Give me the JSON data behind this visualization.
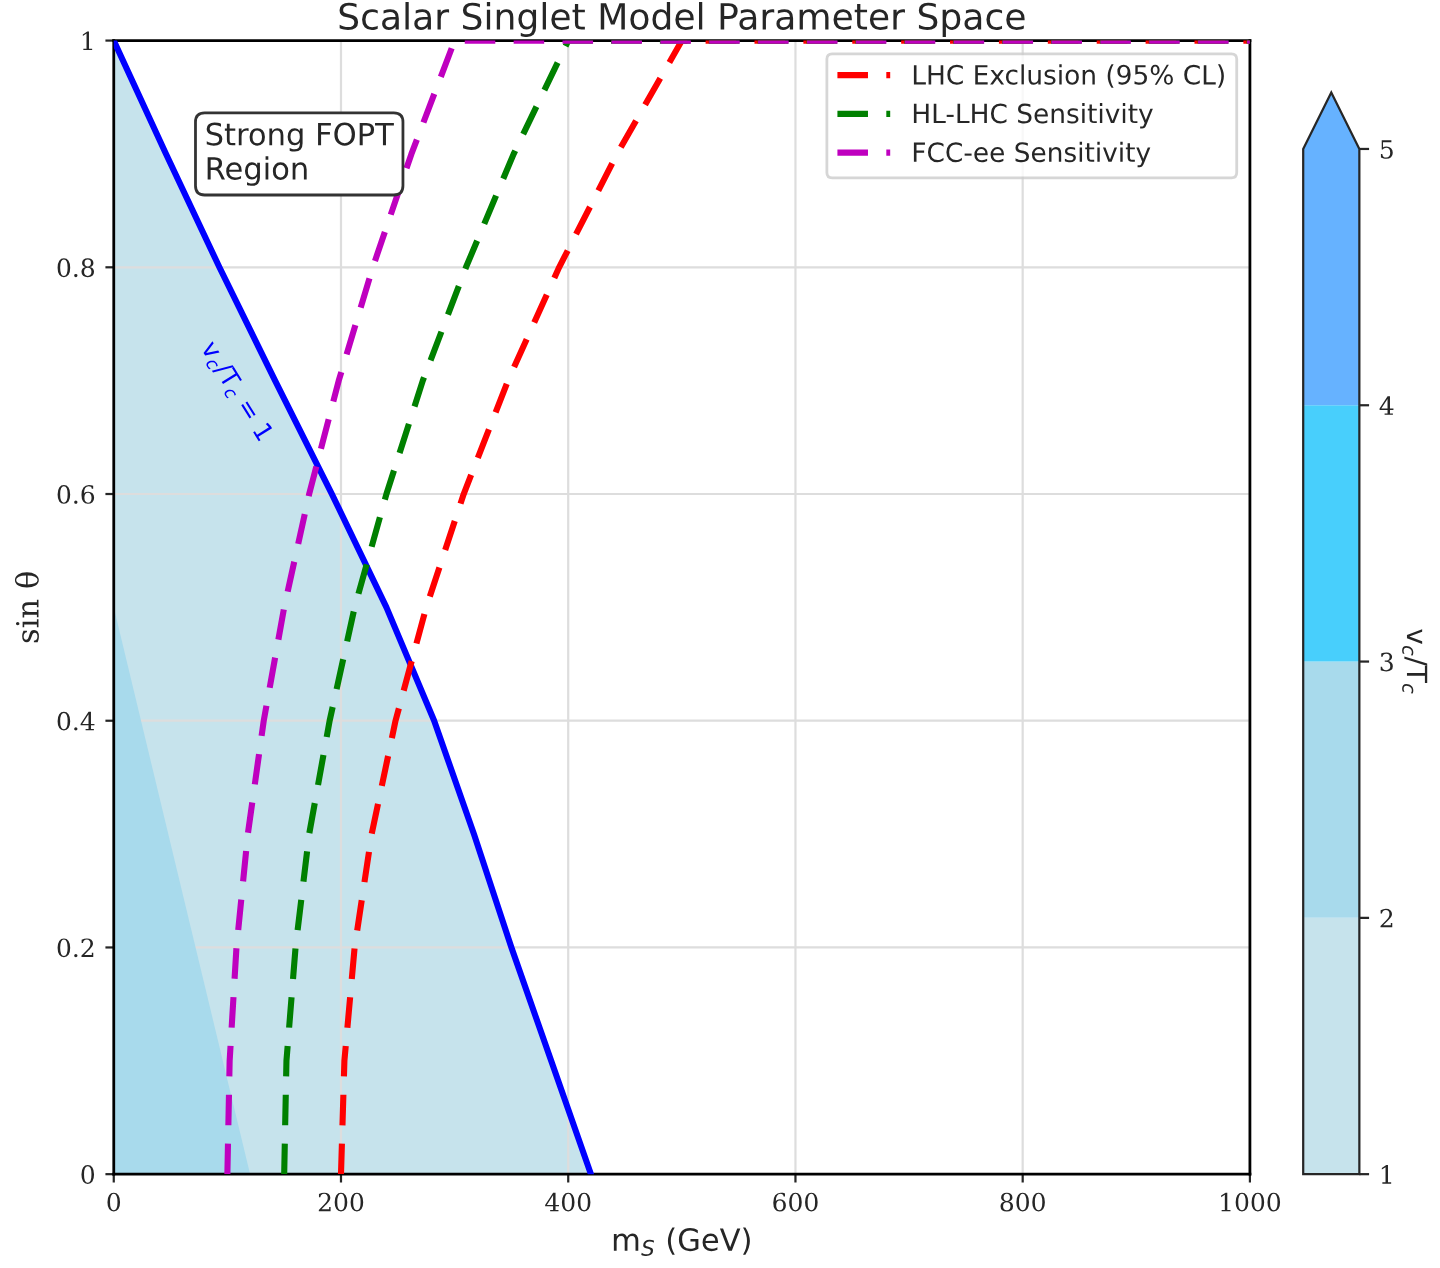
{
  "chart_data": {
    "type": "line",
    "title": "Scalar Singlet Model Parameter Space",
    "xlabel": "m$_{S}$ (GeV)",
    "ylabel": "sin θ",
    "clabel": "v$_{c}$/T$_{c}$",
    "xlim": [
      0,
      1000
    ],
    "ylim": [
      0,
      1
    ],
    "xticks": [
      0,
      200,
      400,
      600,
      800,
      1000
    ],
    "yticks": [
      0,
      0.2,
      0.4,
      0.6,
      0.8,
      1
    ],
    "clim": [
      1,
      5
    ],
    "cticks": [
      1,
      2,
      3,
      4,
      5
    ],
    "colors": [
      "#c6e3ec",
      "#a8daec",
      "#48cffc",
      "#66b2ff"
    ],
    "grid": true,
    "legend": "top right",
    "marker": "none",
    "annotations": [
      "Strong FOPT\nRegion",
      {
        "text": "v$_{c}$/T$_{c}$ = 1",
        "x": 137,
        "y": 0.69
      }
    ],
    "series": [
      {
        "type": "area",
        "color": "#0000ff",
        "x": [
          0,
          46,
          93,
          142,
          192,
          240,
          282,
          317,
          350,
          385,
          420
        ],
        "values": [
          1,
          0.9,
          0.8,
          0.7,
          0.6,
          0.5,
          0.4,
          0.3,
          0.2,
          0.1,
          0
        ]
      },
      {
        "type": "area",
        "color": "#a8daec",
        "x": [
          0,
          120
        ],
        "values": [
          0.5,
          0
        ]
      },
      {
        "type": "line",
        "name": "LHC Exclusion (95% CL)",
        "color": "#ff0000",
        "line_style": "dashed",
        "x": [
          200,
          203,
          212,
          227,
          248,
          275,
          308,
          347,
          392,
          443,
          500,
          1000
        ],
        "values": [
          0,
          0.1,
          0.2,
          0.3,
          0.4,
          0.5,
          0.6,
          0.7,
          0.8,
          0.9,
          1,
          1
        ]
      },
      {
        "type": "line",
        "name": "HL-LHC Sensitivity",
        "color": "#008000",
        "line_style": "dashed",
        "x": [
          150,
          152,
          160,
          172,
          190,
          212,
          240,
          272,
          310,
          352,
          400,
          1000
        ],
        "values": [
          0,
          0.1,
          0.2,
          0.3,
          0.4,
          0.5,
          0.6,
          0.7,
          0.8,
          0.9,
          1,
          1
        ]
      },
      {
        "type": "line",
        "name": "FCC-ee Sensitivity",
        "color": "#bf00bf",
        "line_style": "dashed",
        "x": [
          100,
          102,
          108,
          118,
          132,
          150,
          172,
          198,
          228,
          262,
          300,
          1000
        ],
        "values": [
          0,
          0.1,
          0.2,
          0.3,
          0.4,
          0.5,
          0.6,
          0.7,
          0.8,
          0.9,
          1,
          1
        ]
      }
    ]
  }
}
